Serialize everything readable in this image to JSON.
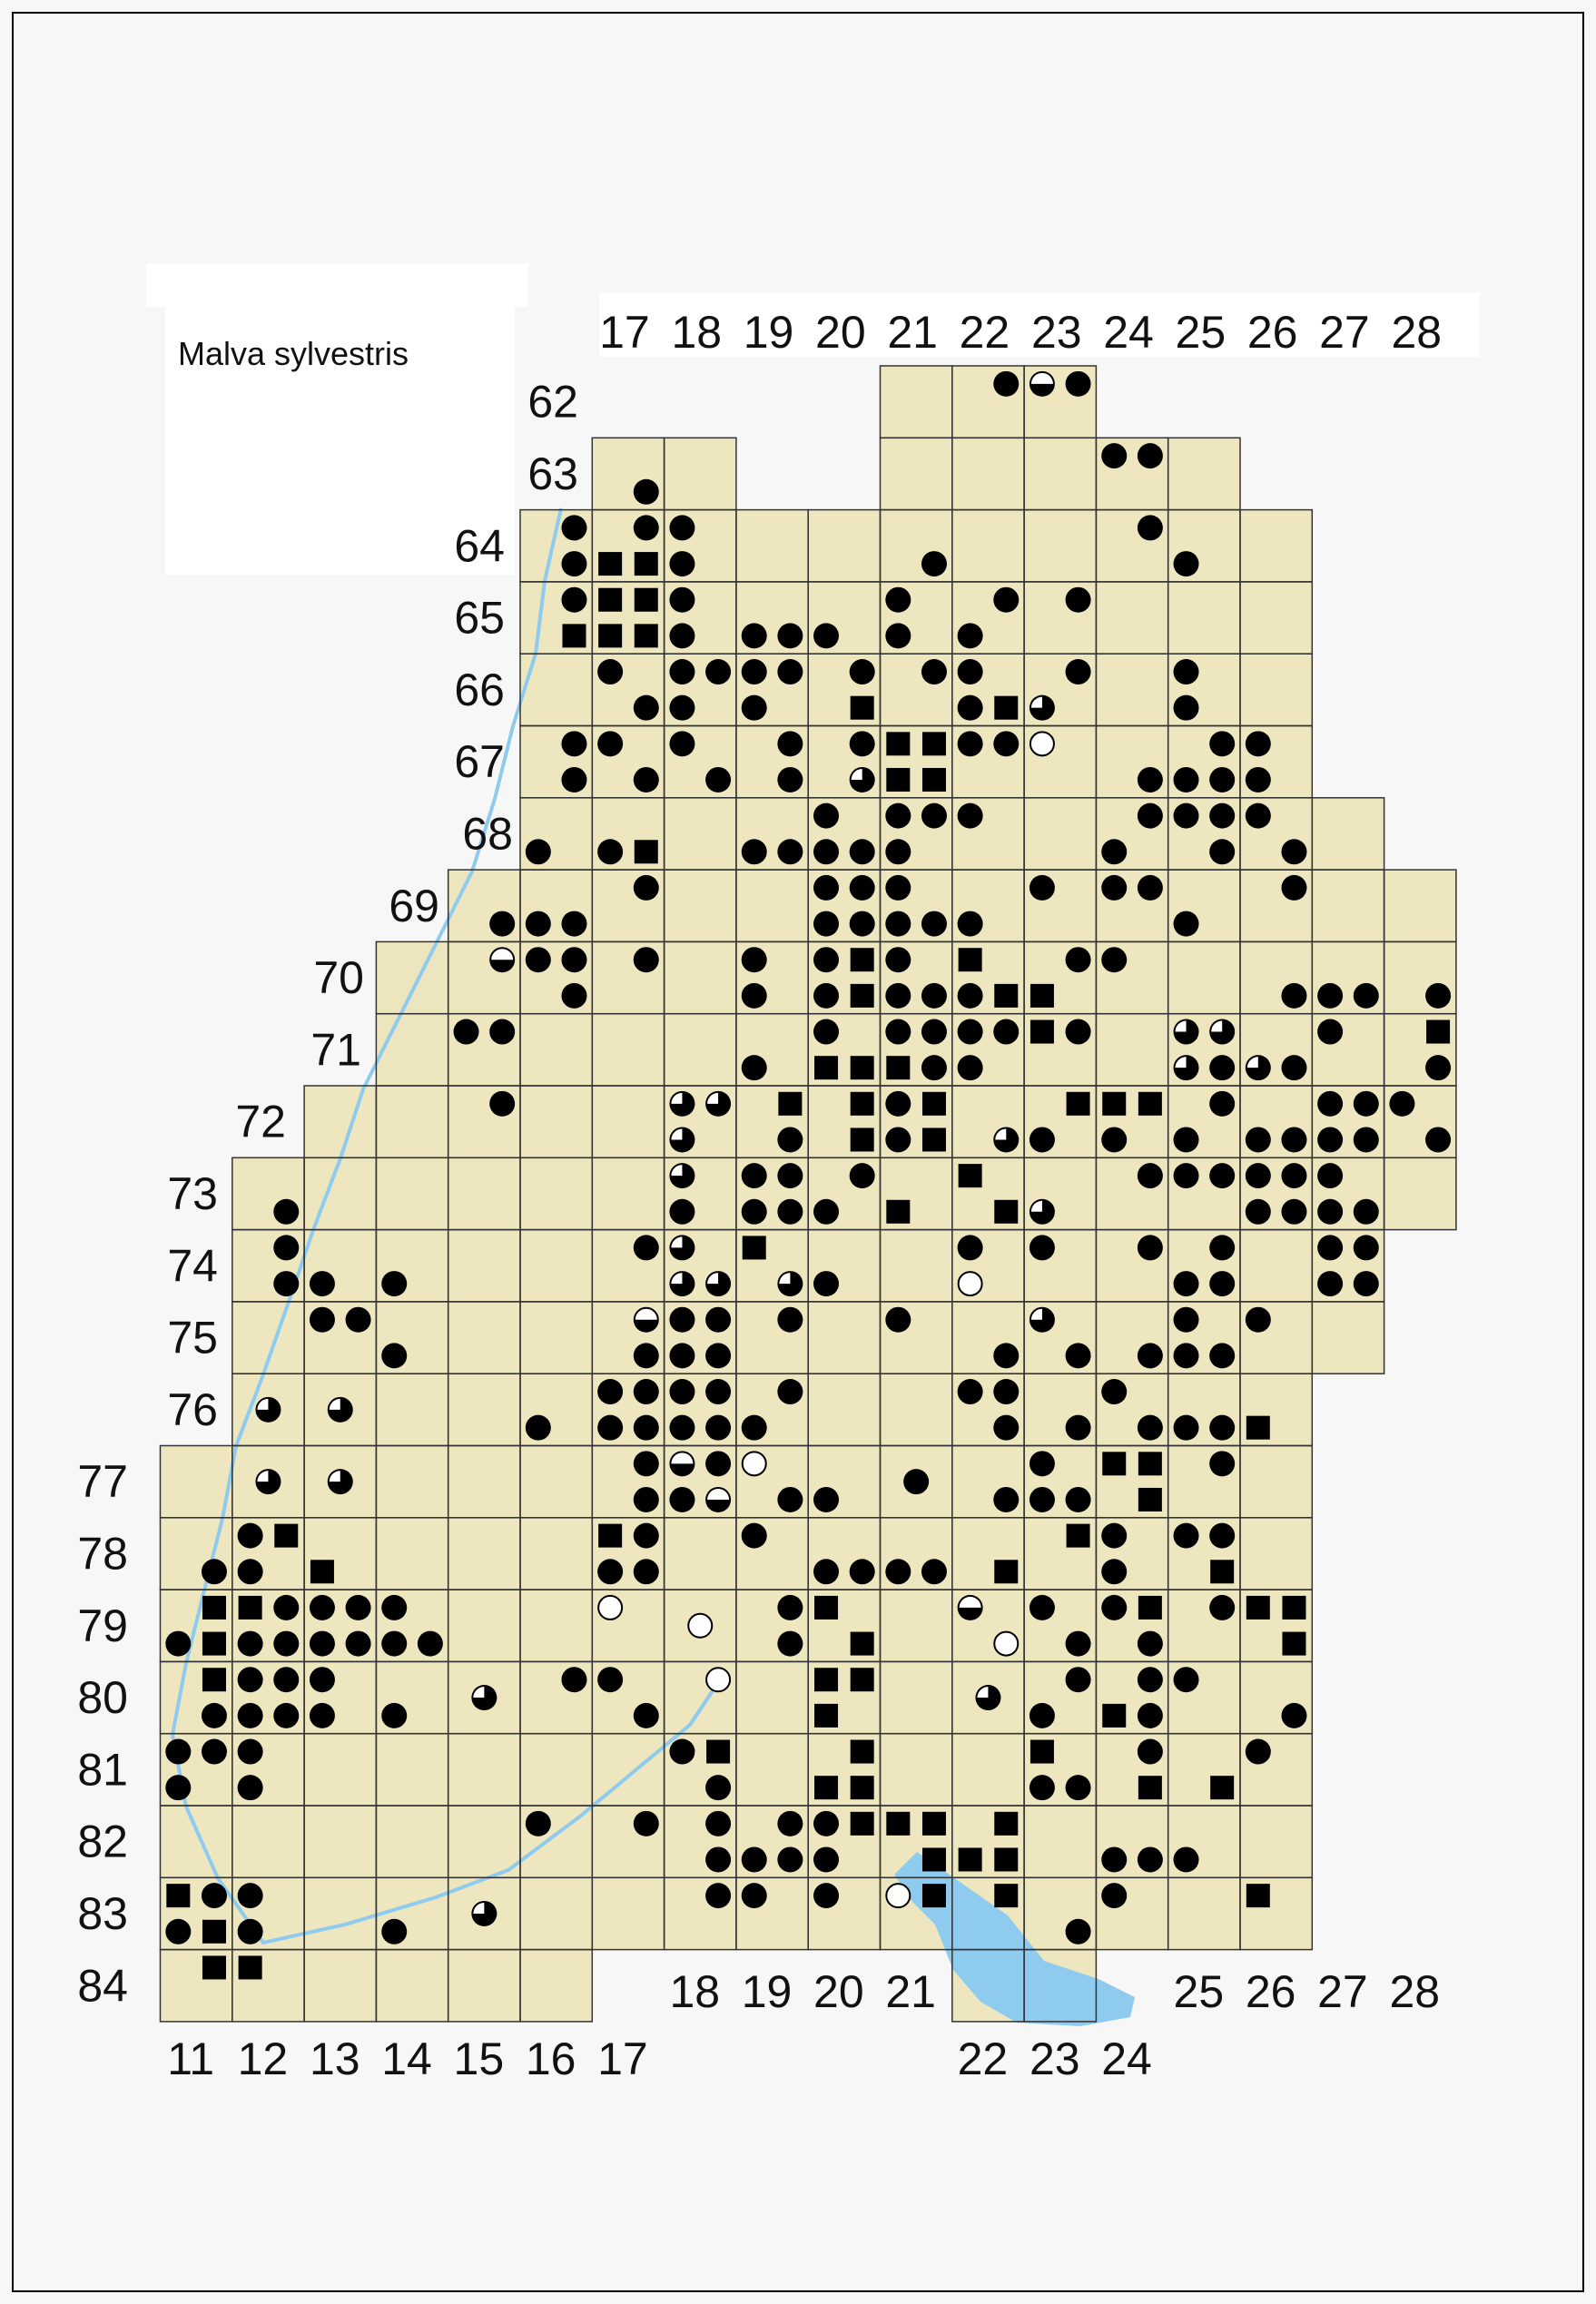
{
  "title": "Malva sylvestris",
  "top_column_labels": [
    "17",
    "18",
    "19",
    "20",
    "21",
    "22",
    "23",
    "24",
    "25",
    "26",
    "27",
    "28"
  ],
  "bottom_column_labels": [
    "11",
    "12",
    "13",
    "14",
    "15",
    "16",
    "17",
    "18",
    "19",
    "20",
    "21",
    "22",
    "23",
    "24",
    "25",
    "26",
    "27",
    "28"
  ],
  "row_labels": [
    "62",
    "63",
    "64",
    "65",
    "66",
    "67",
    "68",
    "69",
    "70",
    "71",
    "72",
    "73",
    "74",
    "75",
    "76",
    "77",
    "78",
    "79",
    "80",
    "81",
    "82",
    "83",
    "84"
  ],
  "symbol_types": {
    "d": "filled-circle",
    "s": "filled-square",
    "h": "half-filled-circle",
    "q": "three-quarter-filled-circle",
    "o": "open-circle"
  },
  "colors": {
    "symbol": "#000000",
    "land": "#ede6bf",
    "water": "#8ecbef",
    "grid": "#333333",
    "background": "#f7f7f7"
  },
  "grid_rows": [
    {
      "row": "62",
      "north": ".. .. .. .. .. .. .. .. .. .. .. .d hd .. .. .. .. ..",
      "south": ".. .. .. .. .. .. .. .. .. .. .. .. .. .. .. .. .. .."
    },
    {
      "row": "63",
      "north": ".. .. .. .. .. .. .. .. .. .. .. .. .. dd .. .. .. ..",
      "south": ".. .. .. .. .. .. .d .. .. .. .. .. .. .. .. .. .. .."
    },
    {
      "row": "64",
      "north": ".. .. .. .. .. .d .d d. .. .. .. .. .. .d .. .. .. ..",
      "south": ".. .. .. .. .. .d ss d. .. .. .d .. .. .. d. .. .. .."
    },
    {
      "row": "65",
      "north": ".. .. .. .. .. .d ss d. .. .. d. .d .d .. .. .. .. ..",
      "south": ".. .. .. .. .. .s ss d. dd d. d. d. .. .. .. .. .. .."
    },
    {
      "row": "66",
      "north": ".. .. .. .. .. .. d. dd dd .d .d d. .d .. d. .. .. ..",
      "south": ".. .. .. .. .. .. .d d. d. .s .. ds q. .. d. .. .. .."
    },
    {
      "row": "67",
      "north": ".. .. .. .. .. .d d. d. .d .d ss dd o. .. .d d. .. ..",
      "south": ".. .. .. .. .. .d .d .d .d .q ss .. .. .d dd d. .. .."
    },
    {
      "row": "68",
      "north": ".. .. .. .. .. .. .. .. .. d. dd d. .. .d dd d. .. ..",
      "south": ".. .. .. .. .. d. ds .. dd dd d. .. .. d. .d .d .. .."
    },
    {
      "row": "69",
      "north": ".. .. .. .. .. .. .d .. .. dd d. .. d. dd .. .d .. ..",
      "south": ".. .. .. .. .d dd .. .. .. dd dd d. .. .. d. .. .. .."
    },
    {
      "row": "70",
      "north": ".. .. .. .. .h dd .d .. d. ds d. s. .d d. .. .. .. ..",
      "south": ".. .. .. .. .. .d .. .. d. ds dd ds s. .. .. .d dd .d"
    },
    {
      "row": "71",
      "north": ".. .. .. .. dd .. .. .. .. d. dd dd sd .. qq .. d. .s",
      "south": ".. .. .. .. .. .. .. .. d. ss sd d. .. .. qd qd .. .d"
    },
    {
      "row": "72",
      "north": ".. .. .. .. .d .. .. qq .s .s ds .. .s ss .d .. dd d.",
      "south": ".. .. .. .. .. .. .. q. .d .s ds .q d. d. d. dd dd .d"
    },
    {
      "row": "73",
      "north": ".. .. .. .. .. .. .. q. dd .d .. s. .. .d dd dd d. ..",
      "south": ".. .d .. .. .. .. .. d. dd d. s. .s q. .. .. dd dd .."
    },
    {
      "row": "74",
      "north": ".. .d .. .. .. .. .d q. s. .. .. d. d. .d .d .. dd ..",
      "south": ".. .d d. d. .. .. .. qq .q d. .. o. .. .. dd .. dd .."
    },
    {
      "row": "75",
      "north": ".. .. dd .. .. .. .h dd .d .. d. .. q. .. d. d. .. ..",
      "south": ".. .. .. d. .. .. .d dd .. .. .. .d .d .d dd .. .. .."
    },
    {
      "row": "76",
      "north": ".. .. .. .. .. .. dd dd .d .. .. dd .. d. .. .. .. ..",
      "south": ".. .. .. .. .. d. dd dd d. .. .. .d .d .d dd s. .. .."
    },
    {
      "row": "77",
      "north": ".. .. .. .. .. .. .d hd o. .. .. .. d. ss .d .. .. ..",
      "south": ".. .. .. .. .. .. .d dh .d d. .. .d dd .s .. .. .. .."
    },
    {
      "row": "78",
      "north": ".. ds .. .. .. .. sd .. d. .. .. .. .s d. dd .. .. ..",
      "south": ".d d. s. .. .. .. dd .. .. dd dd .s .. d. .s .. .. .."
    },
    {
      "row": "79",
      "north": ".s sd dd d. .. .. o. .. .d s. .. h. d. ds .d ss .. ..",
      "south": "ds dd dd dd .. .. .. .. .d .s .. .o .d .d .. .s .. .."
    },
    {
      "row": "80",
      "north": ".s dd d. .. .. .d d. .o .. ss .. .. .d .d d. .. .. ..",
      "south": ".d dd d. d. .. .. .d .. .. s. .. .. d. sd .. .d .. .."
    },
    {
      "row": "81",
      "north": "dd d. .. .. .. .. .. ds .. .s .. .. s. .d .. d. .. ..",
      "south": "d. d. .. .. .. .. .. .d .. ss .. .. dd .s .s .. .. .."
    },
    {
      "row": "82",
      "north": ".. .. .. .. .. d. .d .d .d ds ss .s .. .. .. .. .. ..",
      "south": ".. .. .. .. .. .. .. .d dd d. .s ss .. dd d. .. .. .."
    },
    {
      "row": "83",
      "north": "sd d. .. .. .. .. .. .d d. d. os .s .. d. .. s. .. ..",
      "south": "ds d. .. d. .. .. .. .. .. .. .. .. .d .. .. .. .. .."
    },
    {
      "row": "84",
      "north": ".s s. .. .. .. .. .. .. .. .. .. .. .. .. .. .. .. ..",
      "south": ".. .. .. .. .. .. .. .. .. .. .. .. .. .. .. .. .. .."
    }
  ],
  "cell_symbols": [
    {
      "row": "76",
      "col": "12",
      "type": "q"
    },
    {
      "row": "76",
      "col": "13",
      "type": "q"
    },
    {
      "row": "77",
      "col": "12",
      "type": "q"
    },
    {
      "row": "77",
      "col": "13",
      "type": "q"
    },
    {
      "row": "77",
      "col": "21",
      "type": "d"
    },
    {
      "row": "79",
      "col": "18",
      "type": "o"
    },
    {
      "row": "80",
      "col": "15",
      "type": "q"
    },
    {
      "row": "80",
      "col": "22",
      "type": "q"
    },
    {
      "row": "83",
      "col": "15",
      "type": "q"
    }
  ]
}
